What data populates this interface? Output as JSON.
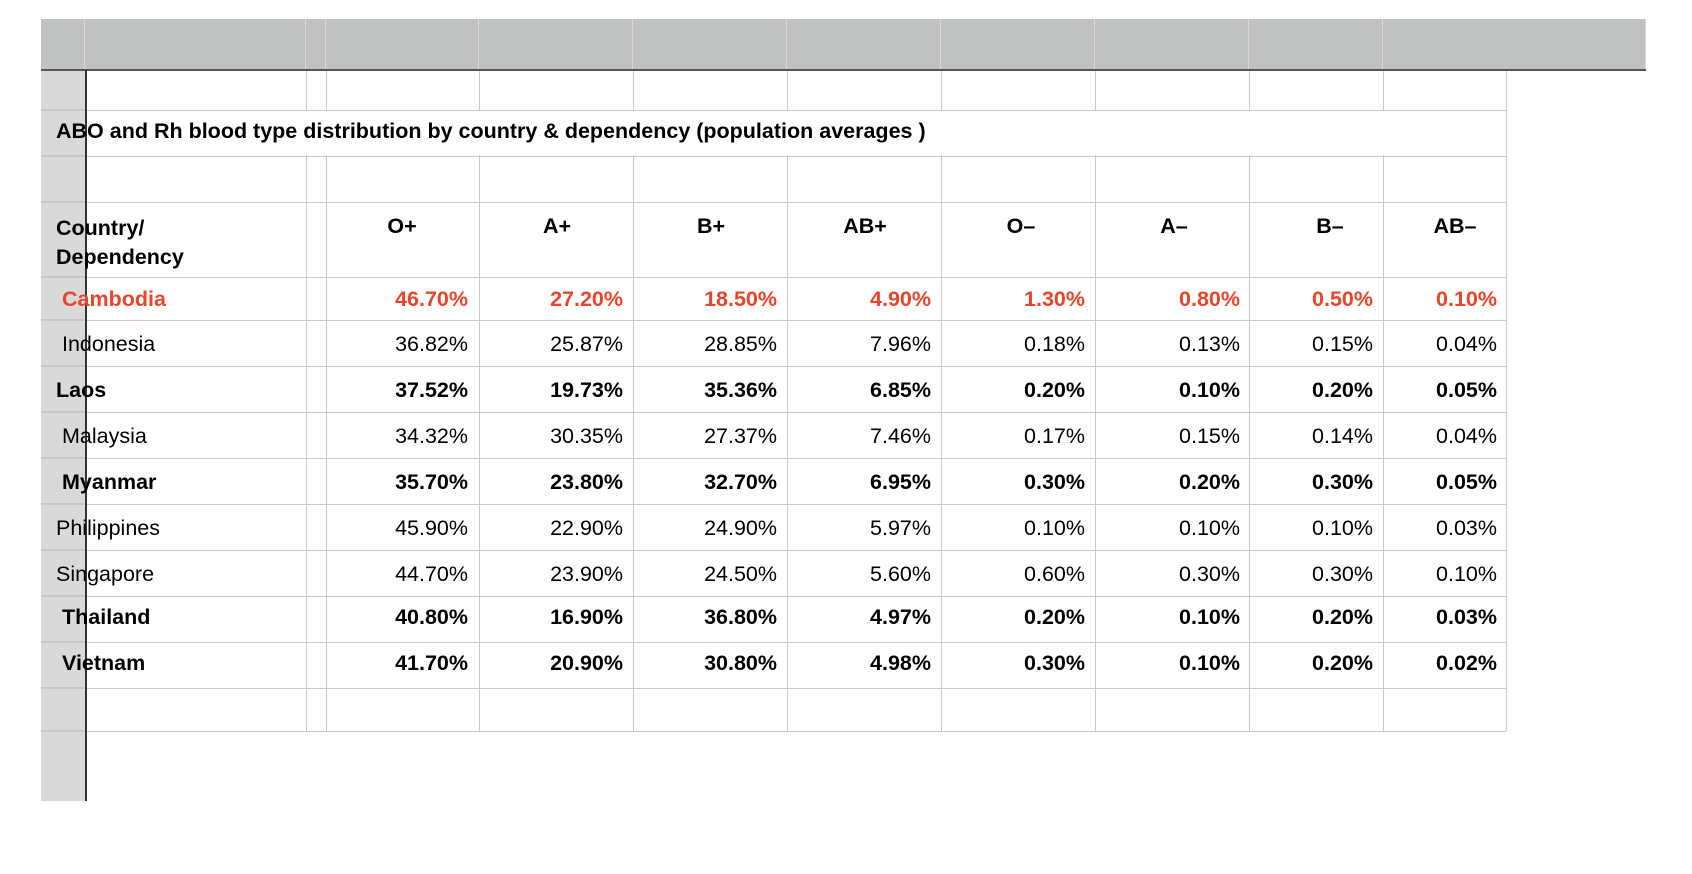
{
  "title": "ABO and Rh blood type distribution by country & dependency (population averages )",
  "columns": [
    "O+",
    "A+",
    "B+",
    "AB+",
    "O–",
    "A–",
    "B–",
    "AB–"
  ],
  "country_header_line1": "Country/",
  "country_header_line2": "Dependency",
  "rows": [
    {
      "country": "Cambodia",
      "style": "red-bold",
      "values": [
        "46.70%",
        "27.20%",
        "18.50%",
        "4.90%",
        "1.30%",
        "0.80%",
        "0.50%",
        "0.10%"
      ]
    },
    {
      "country": "Indonesia",
      "style": "normal",
      "values": [
        "36.82%",
        "25.87%",
        "28.85%",
        "7.96%",
        "0.18%",
        "0.13%",
        "0.15%",
        "0.04%"
      ]
    },
    {
      "country": "Laos",
      "style": "bold",
      "values": [
        "37.52%",
        "19.73%",
        "35.36%",
        "6.85%",
        "0.20%",
        "0.10%",
        "0.20%",
        "0.05%"
      ]
    },
    {
      "country": "Malaysia",
      "style": "normal",
      "values": [
        "34.32%",
        "30.35%",
        "27.37%",
        "7.46%",
        "0.17%",
        "0.15%",
        "0.14%",
        "0.04%"
      ]
    },
    {
      "country": "Myanmar",
      "style": "bold",
      "values": [
        "35.70%",
        "23.80%",
        "32.70%",
        "6.95%",
        "0.30%",
        "0.20%",
        "0.30%",
        "0.05%"
      ]
    },
    {
      "country": "Philippines",
      "style": "normal",
      "values": [
        "45.90%",
        "22.90%",
        "24.90%",
        "5.97%",
        "0.10%",
        "0.10%",
        "0.10%",
        "0.03%"
      ]
    },
    {
      "country": "Singapore",
      "style": "normal",
      "values": [
        "44.70%",
        "23.90%",
        "24.50%",
        "5.60%",
        "0.60%",
        "0.30%",
        "0.30%",
        "0.10%"
      ]
    },
    {
      "country": "Thailand",
      "style": "bold",
      "values": [
        "40.80%",
        "16.90%",
        "36.80%",
        "4.97%",
        "0.20%",
        "0.10%",
        "0.20%",
        "0.03%"
      ]
    },
    {
      "country": "Vietnam",
      "style": "bold",
      "values": [
        "41.70%",
        "20.90%",
        "30.80%",
        "4.98%",
        "0.30%",
        "0.10%",
        "0.20%",
        "0.02%"
      ]
    }
  ],
  "colors": {
    "highlight_red": "#e8452c",
    "header_band": "#c0c2c1",
    "row_gutter": "#d9d9d9",
    "grid": "#c9c9c9"
  }
}
